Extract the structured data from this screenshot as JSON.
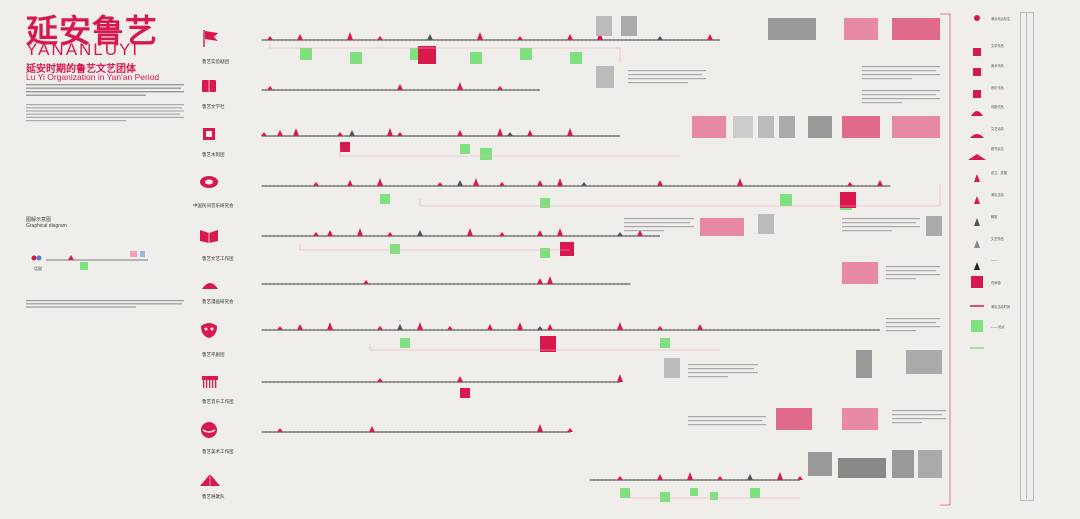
{
  "title": {
    "zh": "延安鲁艺",
    "en": "YANANLUYI",
    "subtitle_zh": "延安时期的鲁艺文艺团体",
    "subtitle_en": "Lu Yi Organization in Yan'an Period"
  },
  "diagram_label": {
    "zh": "图解示意图",
    "en": "Graphical diagram"
  },
  "example_label": "话剧",
  "brand_color": "#d8194e",
  "accent_green": "#7ee07e",
  "rows": [
    {
      "name": "鲁艺实验剧团",
      "icon": "flag-icon"
    },
    {
      "name": "鲁艺文学社",
      "icon": "book-icon"
    },
    {
      "name": "鲁艺木刻团",
      "icon": "woodcut-icon"
    },
    {
      "name": "中国民间音乐研究会",
      "icon": "drum-icon"
    },
    {
      "name": "鲁艺文艺工作团",
      "icon": "open-book-icon"
    },
    {
      "name": "鲁艺漫画研究会",
      "icon": "fan-icon"
    },
    {
      "name": "鲁艺平剧团",
      "icon": "mask-icon"
    },
    {
      "name": "鲁艺音乐工作团",
      "icon": "comb-icon"
    },
    {
      "name": "鲁艺美术工作团",
      "icon": "drum-mask-icon"
    },
    {
      "name": "鲁艺秧歌队",
      "icon": "fan-dance-icon"
    }
  ],
  "legend": [
    "演出地点标注",
    "文学作品",
    "美术作品",
    "音乐作品",
    "戏剧作品",
    "文艺活动",
    "报刊杂志",
    "成立、发展",
    "演出活动",
    "解散",
    "文艺作品",
    "——",
    "时间轴",
    "演出活动时间",
    "—— 地点"
  ]
}
